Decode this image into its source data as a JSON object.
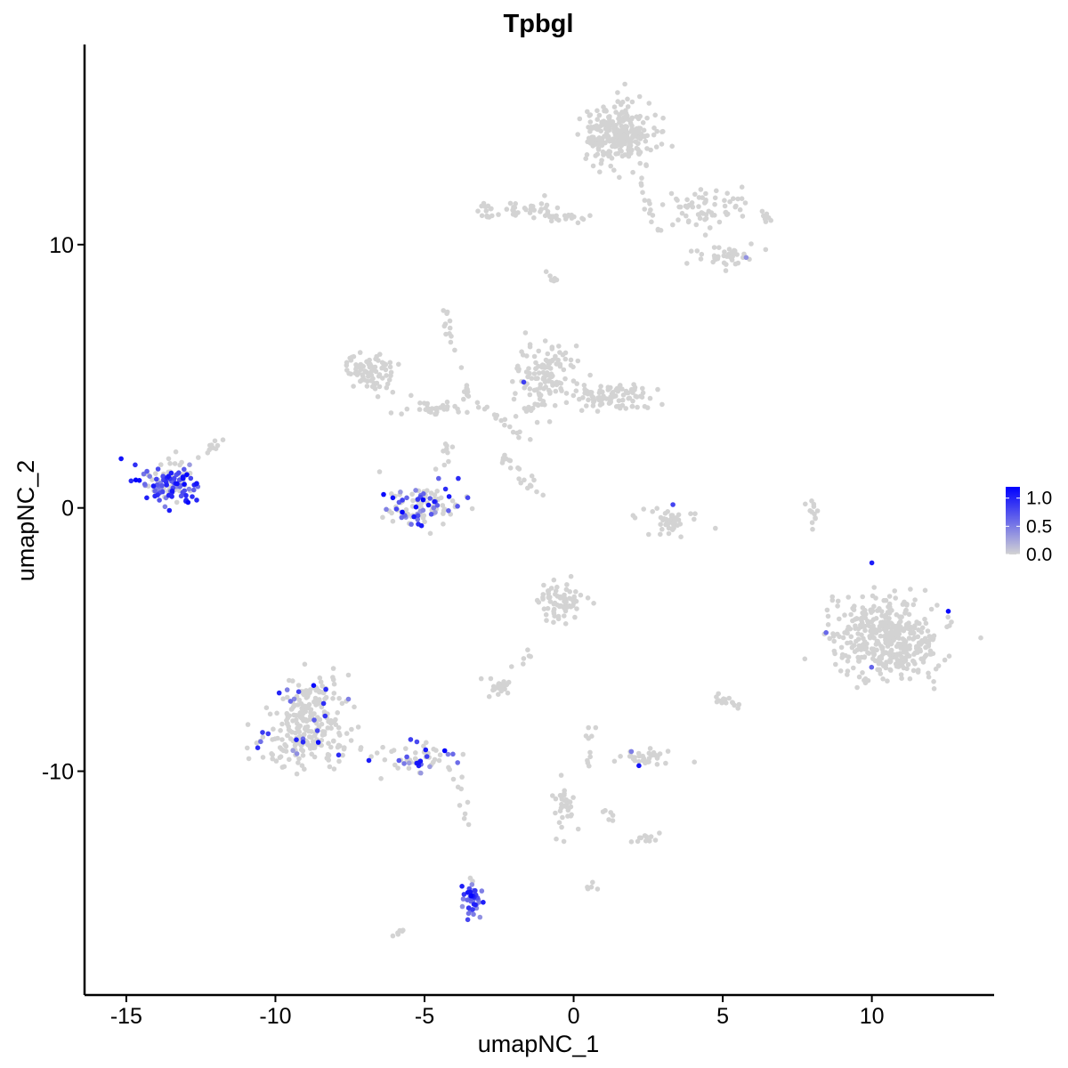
{
  "chart_data": {
    "type": "scatter",
    "title": "Tpbgl",
    "xlabel": "umapNC_1",
    "ylabel": "umapNC_2",
    "xlim": [
      -16.4,
      14.1
    ],
    "ylim": [
      -18.5,
      17.6
    ],
    "x_ticks": [
      -15,
      -10,
      -5,
      0,
      5,
      10
    ],
    "x_tick_labels": [
      "-15",
      "-10",
      "-5",
      "0",
      "5",
      "10"
    ],
    "y_ticks": [
      -10,
      0,
      10
    ],
    "y_tick_labels": [
      "-10",
      "0",
      "10"
    ],
    "grid": false,
    "legend_position": "right",
    "color_scale": {
      "low_color": "#d3d3d3",
      "high_color": "#0000ff",
      "min": 0.0,
      "max": 1.2,
      "tick_values": [
        0.0,
        0.5,
        1.0
      ],
      "tick_labels": [
        "0.0",
        "0.5",
        "1.0"
      ]
    },
    "clusters": [
      {
        "cx": 1.5,
        "cy": 14.2,
        "sx": 1.1,
        "sy": 1.1,
        "n": 260,
        "expr_frac": 0.0
      },
      {
        "cx": 4.3,
        "cy": 11.3,
        "sx": 1.5,
        "sy": 0.7,
        "n": 70,
        "expr_frac": 0.0
      },
      {
        "cx": 5.0,
        "cy": 9.6,
        "sx": 0.9,
        "sy": 0.4,
        "n": 40,
        "expr_frac": 0.03
      },
      {
        "cx": -2.0,
        "cy": 11.3,
        "sx": 1.4,
        "sy": 0.3,
        "n": 45,
        "expr_frac": 0.0
      },
      {
        "cx": -6.8,
        "cy": 5.1,
        "sx": 0.8,
        "sy": 0.6,
        "n": 80,
        "expr_frac": 0.0
      },
      {
        "cx": -4.8,
        "cy": 3.8,
        "sx": 0.8,
        "sy": 0.3,
        "n": 35,
        "expr_frac": 0.0
      },
      {
        "cx": -1.0,
        "cy": 5.0,
        "sx": 0.9,
        "sy": 1.2,
        "n": 120,
        "expr_frac": 0.01
      },
      {
        "cx": 1.3,
        "cy": 4.3,
        "sx": 1.1,
        "sy": 0.5,
        "n": 90,
        "expr_frac": 0.0
      },
      {
        "cx": -13.5,
        "cy": 1.0,
        "sx": 0.9,
        "sy": 0.75,
        "n": 140,
        "expr_frac": 0.6
      },
      {
        "cx": -5.2,
        "cy": 0.0,
        "sx": 1.2,
        "sy": 0.7,
        "n": 110,
        "expr_frac": 0.35
      },
      {
        "cx": 3.3,
        "cy": -0.5,
        "sx": 0.8,
        "sy": 0.5,
        "n": 45,
        "expr_frac": 0.02
      },
      {
        "cx": 10.5,
        "cy": -5.0,
        "sx": 1.6,
        "sy": 1.4,
        "n": 420,
        "expr_frac": 0.008
      },
      {
        "cx": -0.4,
        "cy": -3.5,
        "sx": 0.7,
        "sy": 0.6,
        "n": 70,
        "expr_frac": 0.0
      },
      {
        "cx": -8.8,
        "cy": -7.5,
        "sx": 1.0,
        "sy": 1.1,
        "n": 130,
        "expr_frac": 0.05
      },
      {
        "cx": -9.0,
        "cy": -8.9,
        "sx": 1.5,
        "sy": 0.8,
        "n": 150,
        "expr_frac": 0.12
      },
      {
        "cx": -5.2,
        "cy": -9.5,
        "sx": 1.2,
        "sy": 0.5,
        "n": 55,
        "expr_frac": 0.45
      },
      {
        "cx": -2.5,
        "cy": -6.9,
        "sx": 0.4,
        "sy": 0.3,
        "n": 25,
        "expr_frac": 0.0
      },
      {
        "cx": 2.4,
        "cy": -9.5,
        "sx": 0.7,
        "sy": 0.3,
        "n": 35,
        "expr_frac": 0.08
      },
      {
        "cx": -0.3,
        "cy": -11.3,
        "sx": 0.3,
        "sy": 0.9,
        "n": 35,
        "expr_frac": 0.0
      },
      {
        "cx": 2.3,
        "cy": -12.6,
        "sx": 0.4,
        "sy": 0.3,
        "n": 12,
        "expr_frac": 0.0
      },
      {
        "cx": -3.4,
        "cy": -14.8,
        "sx": 0.3,
        "sy": 0.6,
        "n": 45,
        "expr_frac": 0.9
      },
      {
        "cx": 5.0,
        "cy": -7.3,
        "sx": 0.3,
        "sy": 0.2,
        "n": 10,
        "expr_frac": 0.0
      },
      {
        "cx": 8.0,
        "cy": -0.3,
        "sx": 0.2,
        "sy": 0.6,
        "n": 12,
        "expr_frac": 0.0
      }
    ],
    "streaks": [
      {
        "x0": -4.3,
        "y0": 7.5,
        "x1": -3.5,
        "y1": 4.0,
        "n": 20
      },
      {
        "x0": -3.6,
        "y0": 4.3,
        "x1": -1.5,
        "y1": 2.5,
        "n": 18
      },
      {
        "x0": -2.5,
        "y0": 2.0,
        "x1": -1.2,
        "y1": 1.0,
        "n": 12
      },
      {
        "x0": -1.8,
        "y0": 1.0,
        "x1": -1.0,
        "y1": 0.6,
        "n": 8
      },
      {
        "x0": -1.9,
        "y0": 3.5,
        "x1": -1.0,
        "y1": 4.0,
        "n": 12
      },
      {
        "x0": -0.8,
        "y0": 11.0,
        "x1": 0.7,
        "y1": 11.0,
        "n": 18
      },
      {
        "x0": -1.0,
        "y0": 8.8,
        "x1": -0.6,
        "y1": 8.6,
        "n": 6
      },
      {
        "x0": 2.0,
        "y0": 13.0,
        "x1": 3.0,
        "y1": 10.2,
        "n": 12
      },
      {
        "x0": -12.5,
        "y0": 2.0,
        "x1": -11.5,
        "y1": 2.8,
        "n": 10
      },
      {
        "x0": -4.2,
        "y0": 2.5,
        "x1": -4.4,
        "y1": 1.0,
        "n": 8
      },
      {
        "x0": -4.0,
        "y0": -9.8,
        "x1": -3.5,
        "y1": -12.2,
        "n": 10
      },
      {
        "x0": -2.0,
        "y0": -6.0,
        "x1": -1.5,
        "y1": -5.5,
        "n": 6
      },
      {
        "x0": 0.5,
        "y0": -8.0,
        "x1": 0.6,
        "y1": -10.0,
        "n": 10
      },
      {
        "x0": 0.5,
        "y0": -14.3,
        "x1": 0.7,
        "y1": -14.4,
        "n": 5
      },
      {
        "x0": 1.0,
        "y0": -11.4,
        "x1": 1.6,
        "y1": -12.0,
        "n": 6
      },
      {
        "x0": -6.1,
        "y0": -16.2,
        "x1": -5.6,
        "y1": -15.9,
        "n": 6
      },
      {
        "x0": 6.2,
        "y0": 11.5,
        "x1": 6.6,
        "y1": 10.8,
        "n": 5
      },
      {
        "x0": 5.0,
        "y0": -7.0,
        "x1": 5.6,
        "y1": -7.6,
        "n": 6
      }
    ]
  }
}
